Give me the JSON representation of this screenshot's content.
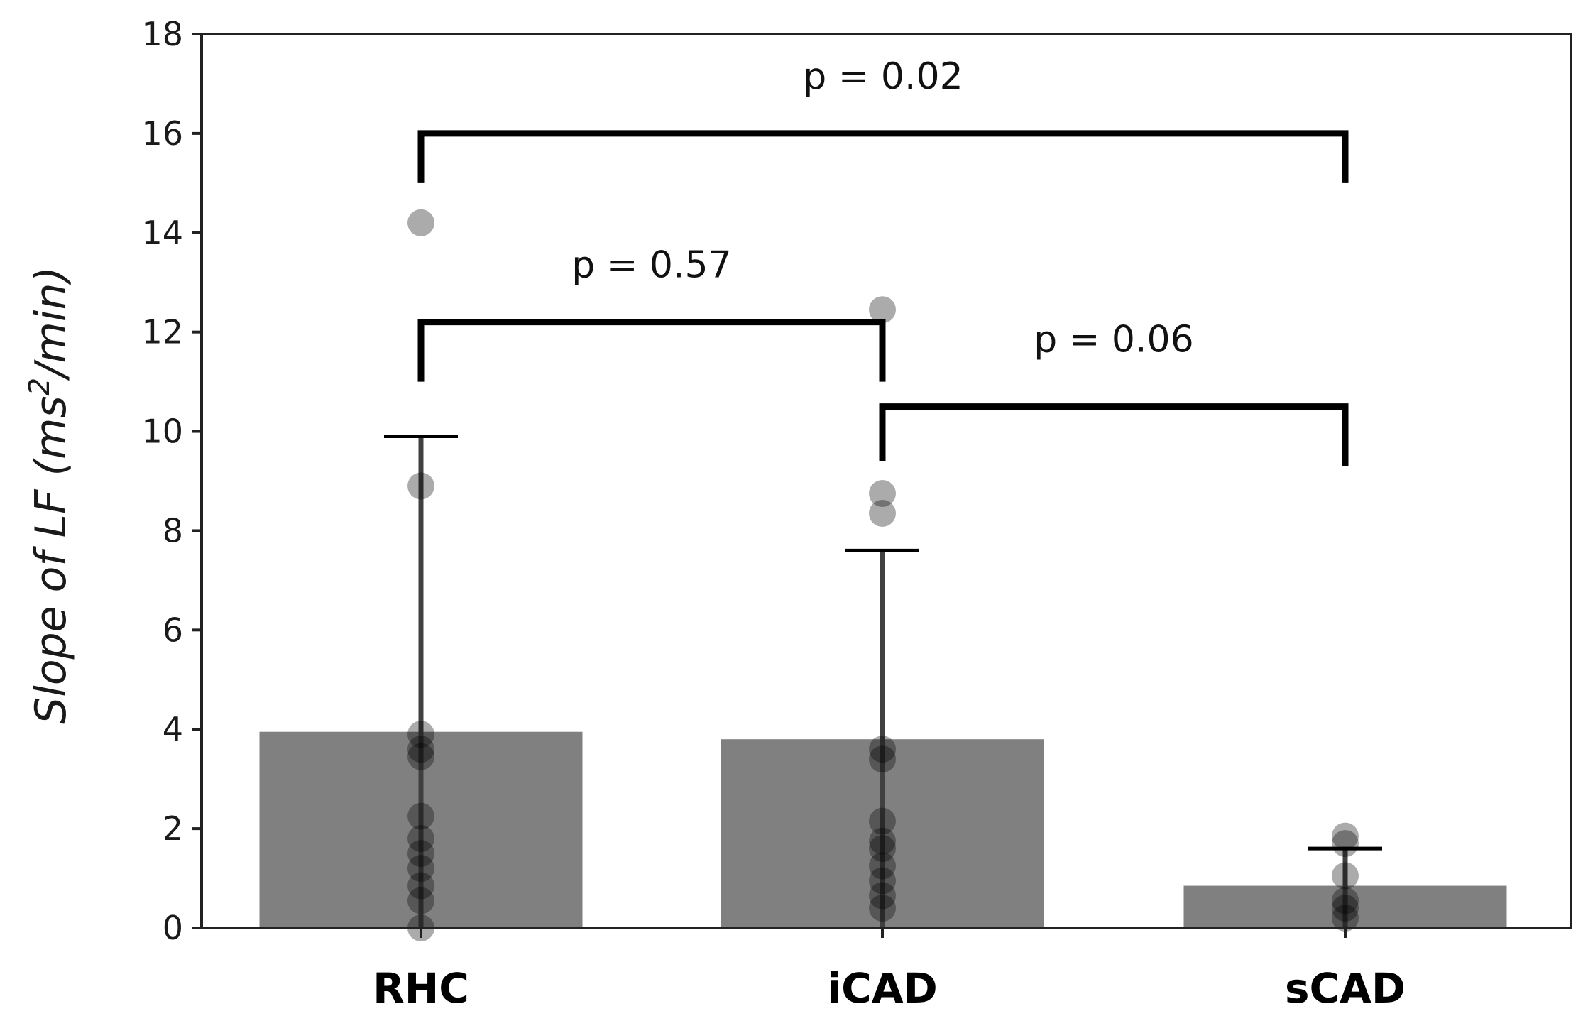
{
  "chart_data": {
    "type": "bar",
    "categories": [
      "RHC",
      "iCAD",
      "sCAD"
    ],
    "values": [
      3.95,
      3.8,
      0.85
    ],
    "error_upper": [
      9.9,
      7.6,
      1.6
    ],
    "points": [
      [
        14.2,
        8.9,
        3.9,
        3.6,
        3.45,
        2.25,
        1.8,
        1.5,
        1.2,
        0.85,
        0.55,
        0.0
      ],
      [
        12.45,
        8.75,
        8.35,
        3.6,
        3.4,
        2.15,
        1.75,
        1.6,
        1.25,
        0.95,
        0.65,
        0.4
      ],
      [
        1.85,
        1.7,
        1.05,
        0.55,
        0.4,
        0.2
      ]
    ],
    "ylim": [
      0,
      18
    ],
    "yticks": [
      "0",
      "2",
      "4",
      "6",
      "8",
      "10",
      "12",
      "14",
      "16",
      "18"
    ],
    "ylabel": {
      "main": "Slope of LF (ms",
      "sup": "2",
      "tail": "/min)"
    },
    "xlabel": "",
    "significance": [
      {
        "from": 0,
        "to": 2,
        "y": 16.0,
        "drop_from": 15.0,
        "drop_to": 15.0,
        "label": "p = 0.02",
        "label_y": 16.9
      },
      {
        "from": 0,
        "to": 1,
        "y": 12.2,
        "drop_from": 11.0,
        "drop_to": 11.0,
        "label": "p = 0.57",
        "label_y": 13.1
      },
      {
        "from": 1,
        "to": 2,
        "y": 10.5,
        "drop_from": 9.4,
        "drop_to": 9.3,
        "label": "p = 0.06",
        "label_y": 11.6
      }
    ],
    "colors": {
      "bar": "#808080",
      "points": "#000000",
      "errorbar": "#404040",
      "bracket": "#000000",
      "axes": "#222222"
    }
  }
}
